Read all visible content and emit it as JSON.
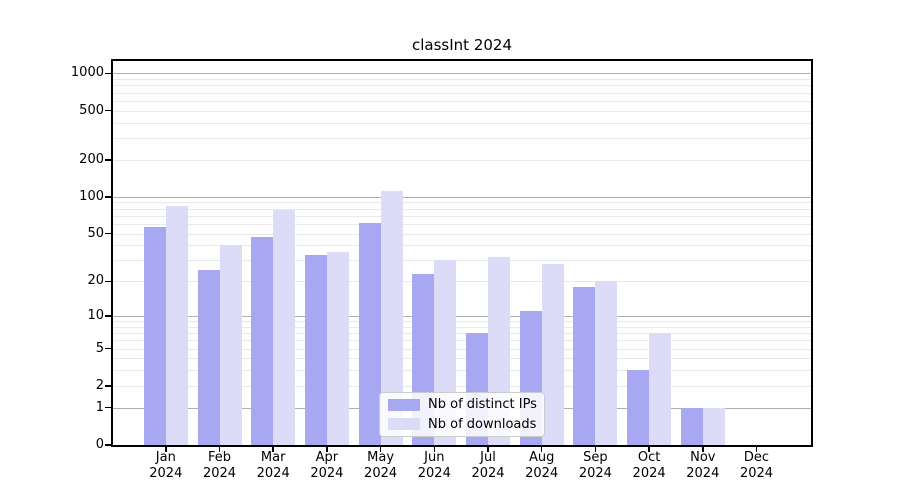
{
  "chart_data": {
    "type": "bar",
    "title": "classInt 2024",
    "categories": [
      "Jan 2024",
      "Feb 2024",
      "Mar 2024",
      "Apr 2024",
      "May 2024",
      "Jun 2024",
      "Jul 2024",
      "Aug 2024",
      "Sep 2024",
      "Oct 2024",
      "Nov 2024",
      "Dec 2024"
    ],
    "series": [
      {
        "name": "Nb of distinct IPs",
        "color": "#a7a7f2",
        "values": [
          57,
          25,
          47,
          33,
          61,
          23,
          7,
          11,
          18,
          3,
          1,
          0
        ]
      },
      {
        "name": "Nb of downloads",
        "color": "#dcdcf9",
        "values": [
          84,
          40,
          78,
          35,
          112,
          30,
          32,
          28,
          20,
          7,
          1,
          0
        ]
      }
    ],
    "xlabel": "",
    "ylabel": "",
    "yscale": "log1p",
    "ylim": [
      0,
      1260
    ],
    "y_ticks": [
      0,
      1,
      2,
      5,
      10,
      20,
      50,
      100,
      200,
      500,
      1000
    ],
    "y_major_gridlines": [
      1,
      10,
      100,
      1000
    ],
    "grid": "on",
    "legend_position": "lower center",
    "colors": {
      "axis": "#000000",
      "grid_major": "#b0b0b0",
      "grid_minor": "#e9e9e9",
      "legend_border": "#cccccc",
      "legend_background": "rgba(255,255,255,0.85)"
    }
  }
}
